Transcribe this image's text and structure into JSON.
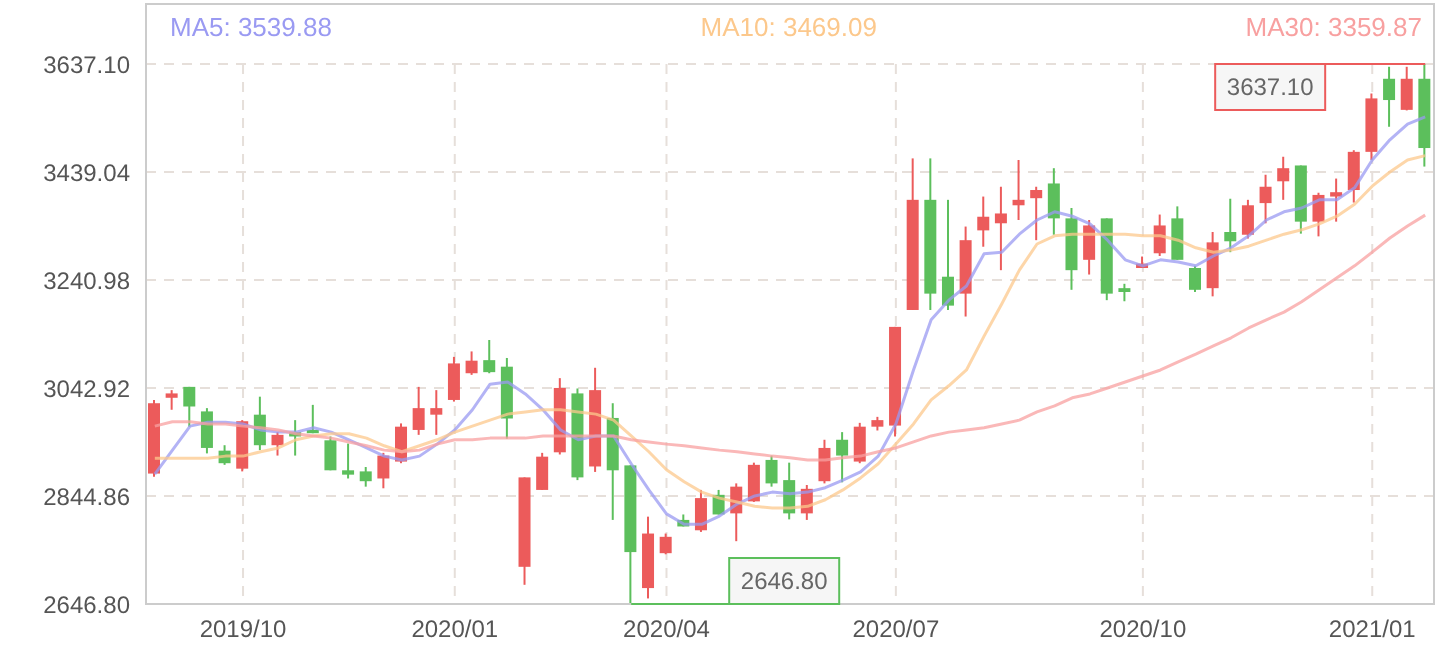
{
  "chart_data": {
    "type": "candlestick",
    "categories": [
      null,
      null,
      null,
      null,
      null,
      "2019/10",
      null,
      null,
      null,
      null,
      null,
      null,
      null,
      null,
      null,
      null,
      null,
      "2020/01",
      null,
      null,
      null,
      null,
      null,
      null,
      null,
      null,
      null,
      null,
      null,
      "2020/04",
      null,
      null,
      null,
      null,
      null,
      null,
      null,
      null,
      null,
      null,
      null,
      null,
      "2020/07",
      null,
      null,
      null,
      null,
      null,
      null,
      null,
      null,
      null,
      null,
      null,
      null,
      null,
      "2020/10",
      null,
      null,
      null,
      null,
      null,
      null,
      null,
      null,
      null,
      null,
      null,
      null,
      "2021/01",
      null,
      null,
      null
    ],
    "ohlc": [
      [
        2886,
        3021,
        2880,
        3015
      ],
      [
        3025,
        3039,
        3003,
        3033
      ],
      [
        3045,
        3045,
        2972,
        3009
      ],
      [
        3000,
        3006,
        2923,
        2933
      ],
      [
        2928,
        2938,
        2902,
        2905
      ],
      [
        2895,
        2984,
        2890,
        2982
      ],
      [
        2994,
        3027,
        2929,
        2938
      ],
      [
        2938,
        2962,
        2919,
        2957
      ],
      [
        2962,
        2984,
        2919,
        2954
      ],
      [
        2966,
        3012,
        2960,
        2960
      ],
      [
        2947,
        2954,
        2892,
        2892
      ],
      [
        2892,
        2941,
        2877,
        2884
      ],
      [
        2890,
        2898,
        2862,
        2872
      ],
      [
        2877,
        2924,
        2859,
        2919
      ],
      [
        2908,
        2978,
        2905,
        2972
      ],
      [
        2966,
        3045,
        2957,
        3006
      ],
      [
        2994,
        3039,
        2957,
        3006
      ],
      [
        3021,
        3100,
        3018,
        3088
      ],
      [
        3070,
        3110,
        3067,
        3093
      ],
      [
        3094,
        3131,
        3070,
        3072
      ],
      [
        3082,
        3098,
        2950,
        2987
      ],
      [
        2715,
        2879,
        2682,
        2879
      ],
      [
        2856,
        2924,
        2856,
        2917
      ],
      [
        2925,
        3061,
        2921,
        3043
      ],
      [
        3033,
        3042,
        2874,
        2879
      ],
      [
        2899,
        3080,
        2889,
        3039
      ],
      [
        2988,
        3015,
        2801,
        2892
      ],
      [
        2901,
        2901,
        2646.8,
        2742
      ],
      [
        2676,
        2807,
        2657,
        2776
      ],
      [
        2740,
        2776,
        2738,
        2770
      ],
      [
        2801,
        2811,
        2789,
        2789
      ],
      [
        2782,
        2856,
        2779,
        2841
      ],
      [
        2847,
        2856,
        2811,
        2811
      ],
      [
        2813,
        2868,
        2762,
        2862
      ],
      [
        2835,
        2906,
        2834,
        2902
      ],
      [
        2911,
        2919,
        2862,
        2868
      ],
      [
        2874,
        2906,
        2802,
        2813
      ],
      [
        2813,
        2865,
        2801,
        2858
      ],
      [
        2872,
        2948,
        2868,
        2933
      ],
      [
        2948,
        2962,
        2870,
        2919
      ],
      [
        2908,
        2979,
        2905,
        2972
      ],
      [
        2972,
        2990,
        2965,
        2984
      ],
      [
        2974,
        3155,
        2954,
        3155
      ],
      [
        3186,
        3464,
        3186,
        3388
      ],
      [
        3388,
        3464,
        3186,
        3216
      ],
      [
        3247,
        3388,
        3186,
        3194
      ],
      [
        3216,
        3339,
        3174,
        3314
      ],
      [
        3332,
        3394,
        3302,
        3357
      ],
      [
        3345,
        3412,
        3259,
        3363
      ],
      [
        3378,
        3461,
        3351,
        3388
      ],
      [
        3391,
        3412,
        3314,
        3406
      ],
      [
        3418,
        3446,
        3324,
        3354
      ],
      [
        3354,
        3373,
        3223,
        3259
      ],
      [
        3278,
        3351,
        3251,
        3341
      ],
      [
        3354,
        3354,
        3204,
        3216
      ],
      [
        3226,
        3234,
        3202,
        3219
      ],
      [
        3263,
        3284,
        3263,
        3271
      ],
      [
        3290,
        3361,
        3285,
        3341
      ],
      [
        3354,
        3376,
        3278,
        3278
      ],
      [
        3263,
        3267,
        3219,
        3223
      ],
      [
        3226,
        3329,
        3211,
        3310
      ],
      [
        3329,
        3390,
        3292,
        3312
      ],
      [
        3324,
        3388,
        3317,
        3378
      ],
      [
        3382,
        3434,
        3345,
        3412
      ],
      [
        3422,
        3467,
        3388,
        3446
      ],
      [
        3451,
        3451,
        3326,
        3348
      ],
      [
        3348,
        3401,
        3321,
        3397
      ],
      [
        3394,
        3427,
        3348,
        3402
      ],
      [
        3406,
        3479,
        3383,
        3476
      ],
      [
        3476,
        3583,
        3461,
        3574
      ],
      [
        3610,
        3632,
        3522,
        3571
      ],
      [
        3553,
        3632,
        3552,
        3610
      ],
      [
        3610,
        3637.1,
        3449,
        3483
      ]
    ],
    "colors": [
      "#ec5b5b",
      "#ec5b5b",
      "#5cbf5c",
      "#5cbf5c",
      "#5cbf5c",
      "#ec5b5b",
      "#5cbf5c",
      "#ec5b5b",
      "#5cbf5c",
      "#5cbf5c",
      "#5cbf5c",
      "#5cbf5c",
      "#5cbf5c",
      "#ec5b5b",
      "#ec5b5b",
      "#ec5b5b",
      "#ec5b5b",
      "#ec5b5b",
      "#ec5b5b",
      "#5cbf5c",
      "#5cbf5c",
      "#ec5b5b",
      "#ec5b5b",
      "#ec5b5b",
      "#5cbf5c",
      "#ec5b5b",
      "#5cbf5c",
      "#5cbf5c",
      "#ec5b5b",
      "#ec5b5b",
      "#5cbf5c",
      "#ec5b5b",
      "#5cbf5c",
      "#ec5b5b",
      "#ec5b5b",
      "#5cbf5c",
      "#5cbf5c",
      "#ec5b5b",
      "#ec5b5b",
      "#5cbf5c",
      "#ec5b5b",
      "#ec5b5b",
      "#ec5b5b",
      "#ec5b5b",
      "#5cbf5c",
      "#5cbf5c",
      "#ec5b5b",
      "#ec5b5b",
      "#ec5b5b",
      "#ec5b5b",
      "#ec5b5b",
      "#5cbf5c",
      "#5cbf5c",
      "#ec5b5b",
      "#5cbf5c",
      "#5cbf5c",
      "#ec5b5b",
      "#ec5b5b",
      "#5cbf5c",
      "#5cbf5c",
      "#ec5b5b",
      "#5cbf5c",
      "#ec5b5b",
      "#ec5b5b",
      "#ec5b5b",
      "#5cbf5c",
      "#ec5b5b",
      "#ec5b5b",
      "#ec5b5b",
      "#ec5b5b",
      "#5cbf5c",
      "#ec5b5b",
      "#5cbf5c"
    ],
    "series": [
      {
        "type": "line",
        "name": "MA5: 3539.88",
        "color": "#9a9af2",
        "values": [
          2885,
          2929,
          2973,
          2980,
          2980,
          2977,
          2966,
          2962,
          2962,
          2970,
          2962,
          2948,
          2933,
          2918,
          2911,
          2918,
          2940,
          2966,
          3003,
          3050,
          3054,
          3032,
          3003,
          2966,
          2948,
          2955,
          2955,
          2904,
          2856,
          2812,
          2793,
          2793,
          2808,
          2830,
          2845,
          2852,
          2849,
          2852,
          2860,
          2874,
          2889,
          2918,
          2977,
          3076,
          3168,
          3204,
          3230,
          3289,
          3292,
          3325,
          3351,
          3366,
          3358,
          3344,
          3314,
          3278,
          3267,
          3278,
          3274,
          3267,
          3285,
          3300,
          3322,
          3351,
          3366,
          3373,
          3388,
          3388,
          3410,
          3461,
          3498,
          3527,
          3540
        ]
      },
      {
        "type": "line",
        "name": "MA10: 3469.09",
        "color": "#fcc88c",
        "values": [
          2914,
          2914,
          2914,
          2914,
          2918,
          2918,
          2926,
          2933,
          2948,
          2955,
          2959,
          2959,
          2951,
          2937,
          2926,
          2937,
          2948,
          2962,
          2973,
          2984,
          2995,
          2999,
          3003,
          3003,
          2999,
          2995,
          2984,
          2955,
          2926,
          2893,
          2871,
          2852,
          2841,
          2834,
          2826,
          2823,
          2823,
          2826,
          2838,
          2856,
          2878,
          2904,
          2940,
          2977,
          3021,
          3047,
          3076,
          3138,
          3197,
          3259,
          3307,
          3322,
          3325,
          3325,
          3325,
          3325,
          3322,
          3322,
          3314,
          3300,
          3292,
          3296,
          3303,
          3314,
          3325,
          3333,
          3344,
          3358,
          3380,
          3413,
          3439,
          3461,
          3469
        ]
      },
      {
        "type": "line",
        "name": "MA30: 3359.87",
        "color": "#f8a0a0",
        "values": [
          2973,
          2981,
          2981,
          2977,
          2977,
          2973,
          2970,
          2966,
          2959,
          2955,
          2951,
          2944,
          2937,
          2929,
          2926,
          2929,
          2940,
          2948,
          2948,
          2951,
          2951,
          2951,
          2955,
          2955,
          2955,
          2955,
          2955,
          2948,
          2944,
          2940,
          2937,
          2933,
          2929,
          2926,
          2922,
          2918,
          2915,
          2911,
          2911,
          2915,
          2918,
          2926,
          2933,
          2944,
          2955,
          2962,
          2966,
          2970,
          2977,
          2984,
          2999,
          3010,
          3025,
          3032,
          3043,
          3054,
          3065,
          3076,
          3091,
          3105,
          3120,
          3135,
          3153,
          3168,
          3182,
          3201,
          3223,
          3245,
          3267,
          3292,
          3318,
          3340,
          3360
        ]
      }
    ],
    "ylim": [
      2646.8,
      3637.1
    ],
    "yticks": [
      {
        "value": 2646.8,
        "label": "2646.80"
      },
      {
        "value": 2844.86,
        "label": "2844.86"
      },
      {
        "value": 3042.92,
        "label": "3042.92"
      },
      {
        "value": 3240.98,
        "label": "3240.98"
      },
      {
        "value": 3439.04,
        "label": "3439.04"
      },
      {
        "value": 3637.1,
        "label": "3637.10"
      }
    ],
    "grid": true,
    "legend": "top",
    "annotations": [
      "3637.10",
      "2646.80"
    ]
  }
}
